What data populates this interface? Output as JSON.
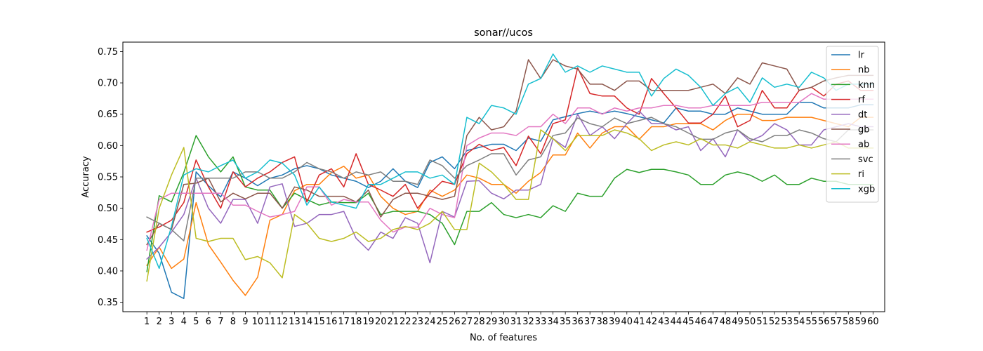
{
  "chart_data": {
    "type": "line",
    "title": "sonar//ucos",
    "xlabel": "No. of features",
    "ylabel": "Accuracy",
    "xlim": [
      -0.95,
      60.95
    ],
    "ylim": [
      0.335,
      0.765
    ],
    "yticks": [
      0.35,
      0.4,
      0.45,
      0.5,
      0.55,
      0.6,
      0.65,
      0.7,
      0.75
    ],
    "grid": false,
    "legend_position": "top-right",
    "x": [
      1,
      2,
      3,
      4,
      5,
      6,
      7,
      8,
      9,
      10,
      11,
      12,
      13,
      14,
      15,
      16,
      17,
      18,
      19,
      20,
      21,
      22,
      23,
      24,
      25,
      26,
      27,
      28,
      29,
      30,
      31,
      32,
      33,
      34,
      35,
      36,
      37,
      38,
      39,
      40,
      41,
      42,
      43,
      44,
      45,
      46,
      47,
      48,
      49,
      50,
      51,
      52,
      53,
      54,
      55,
      56,
      57,
      58,
      59,
      60
    ],
    "series": [
      {
        "name": "lr",
        "color": "#1f77b4",
        "values": [
          0.456,
          0.428,
          0.366,
          0.356,
          0.558,
          0.536,
          0.518,
          0.558,
          0.548,
          0.536,
          0.548,
          0.553,
          0.563,
          0.568,
          0.563,
          0.553,
          0.548,
          0.543,
          0.533,
          0.543,
          0.563,
          0.543,
          0.533,
          0.573,
          0.582,
          0.563,
          0.592,
          0.597,
          0.602,
          0.602,
          0.592,
          0.612,
          0.607,
          0.641,
          0.646,
          0.651,
          0.655,
          0.651,
          0.655,
          0.651,
          0.646,
          0.641,
          0.636,
          0.66,
          0.655,
          0.655,
          0.65,
          0.65,
          0.66,
          0.655,
          0.65,
          0.65,
          0.65,
          0.669,
          0.669,
          0.66,
          0.66,
          0.66,
          0.665,
          0.665
        ]
      },
      {
        "name": "nb",
        "color": "#ff7f0e",
        "values": [
          0.409,
          0.438,
          0.404,
          0.419,
          0.509,
          0.442,
          0.414,
          0.385,
          0.361,
          0.39,
          0.481,
          0.49,
          0.528,
          0.538,
          0.538,
          0.557,
          0.567,
          0.548,
          0.553,
          0.519,
          0.5,
          0.49,
          0.495,
          0.529,
          0.519,
          0.529,
          0.553,
          0.548,
          0.538,
          0.538,
          0.524,
          0.543,
          0.557,
          0.585,
          0.585,
          0.62,
          0.596,
          0.62,
          0.63,
          0.63,
          0.61,
          0.63,
          0.63,
          0.635,
          0.635,
          0.635,
          0.625,
          0.64,
          0.65,
          0.65,
          0.64,
          0.64,
          0.645,
          0.645,
          0.645,
          0.64,
          0.635,
          0.63,
          0.645,
          0.645
        ]
      },
      {
        "name": "knn",
        "color": "#2ca02c",
        "values": [
          0.399,
          0.52,
          0.51,
          0.557,
          0.616,
          0.582,
          0.558,
          0.582,
          0.534,
          0.529,
          0.529,
          0.5,
          0.524,
          0.514,
          0.505,
          0.51,
          0.509,
          0.509,
          0.524,
          0.49,
          0.495,
          0.495,
          0.495,
          0.49,
          0.476,
          0.442,
          0.495,
          0.495,
          0.509,
          0.49,
          0.485,
          0.49,
          0.485,
          0.504,
          0.495,
          0.524,
          0.519,
          0.519,
          0.548,
          0.562,
          0.557,
          0.562,
          0.562,
          0.558,
          0.553,
          0.538,
          0.538,
          0.553,
          0.558,
          0.553,
          0.543,
          0.553,
          0.538,
          0.538,
          0.548,
          0.543,
          0.543,
          0.538,
          0.538,
          0.538
        ]
      },
      {
        "name": "rf",
        "color": "#d62728",
        "values": [
          0.462,
          0.47,
          0.481,
          0.509,
          0.577,
          0.534,
          0.5,
          0.558,
          0.534,
          0.548,
          0.558,
          0.573,
          0.582,
          0.51,
          0.553,
          0.563,
          0.534,
          0.587,
          0.538,
          0.529,
          0.519,
          0.538,
          0.5,
          0.524,
          0.543,
          0.538,
          0.587,
          0.602,
          0.592,
          0.597,
          0.568,
          0.615,
          0.587,
          0.635,
          0.641,
          0.724,
          0.683,
          0.679,
          0.679,
          0.66,
          0.65,
          0.707,
          0.683,
          0.66,
          0.636,
          0.636,
          0.65,
          0.679,
          0.63,
          0.64,
          0.688,
          0.66,
          0.66,
          0.688,
          0.693,
          0.679,
          0.698,
          0.703,
          0.688,
          0.688
        ]
      },
      {
        "name": "dt",
        "color": "#9467bd",
        "values": [
          0.419,
          0.438,
          0.462,
          0.49,
          0.548,
          0.5,
          0.476,
          0.514,
          0.514,
          0.476,
          0.534,
          0.539,
          0.471,
          0.476,
          0.49,
          0.49,
          0.495,
          0.452,
          0.433,
          0.462,
          0.452,
          0.485,
          0.476,
          0.413,
          0.495,
          0.486,
          0.543,
          0.544,
          0.524,
          0.515,
          0.529,
          0.529,
          0.538,
          0.611,
          0.597,
          0.65,
          0.616,
          0.63,
          0.611,
          0.635,
          0.655,
          0.635,
          0.635,
          0.625,
          0.63,
          0.592,
          0.611,
          0.582,
          0.625,
          0.607,
          0.616,
          0.635,
          0.625,
          0.601,
          0.601,
          0.625,
          0.63,
          0.635,
          0.63,
          0.63
        ]
      },
      {
        "name": "gb",
        "color": "#8c564b",
        "values": [
          0.442,
          0.476,
          0.466,
          0.538,
          0.54,
          0.548,
          0.51,
          0.524,
          0.515,
          0.524,
          0.524,
          0.5,
          0.534,
          0.529,
          0.519,
          0.519,
          0.519,
          0.51,
          0.529,
          0.486,
          0.514,
          0.524,
          0.524,
          0.519,
          0.514,
          0.519,
          0.616,
          0.645,
          0.625,
          0.63,
          0.655,
          0.737,
          0.707,
          0.737,
          0.727,
          0.722,
          0.698,
          0.698,
          0.688,
          0.703,
          0.703,
          0.688,
          0.688,
          0.688,
          0.688,
          0.693,
          0.698,
          0.683,
          0.708,
          0.698,
          0.732,
          0.727,
          0.722,
          0.688,
          0.693,
          0.703,
          0.708,
          0.712,
          0.712,
          0.712
        ]
      },
      {
        "name": "ab",
        "color": "#e377c2",
        "values": [
          0.433,
          0.514,
          0.524,
          0.524,
          0.524,
          0.524,
          0.524,
          0.505,
          0.505,
          0.495,
          0.486,
          0.49,
          0.495,
          0.534,
          0.534,
          0.505,
          0.514,
          0.51,
          0.51,
          0.481,
          0.462,
          0.47,
          0.47,
          0.5,
          0.49,
          0.485,
          0.6,
          0.612,
          0.62,
          0.62,
          0.616,
          0.63,
          0.63,
          0.65,
          0.635,
          0.66,
          0.66,
          0.65,
          0.66,
          0.655,
          0.66,
          0.66,
          0.664,
          0.664,
          0.66,
          0.66,
          0.664,
          0.664,
          0.664,
          0.664,
          0.669,
          0.669,
          0.669,
          0.669,
          0.683,
          0.674,
          0.674,
          0.674,
          0.674,
          0.674
        ]
      },
      {
        "name": "svc",
        "color": "#7f7f7f",
        "values": [
          0.486,
          0.476,
          0.466,
          0.448,
          0.548,
          0.548,
          0.548,
          0.548,
          0.558,
          0.558,
          0.548,
          0.548,
          0.558,
          0.573,
          0.563,
          0.558,
          0.548,
          0.558,
          0.553,
          0.558,
          0.543,
          0.543,
          0.538,
          0.577,
          0.568,
          0.548,
          0.568,
          0.577,
          0.587,
          0.587,
          0.553,
          0.577,
          0.582,
          0.616,
          0.62,
          0.644,
          0.635,
          0.63,
          0.644,
          0.635,
          0.64,
          0.645,
          0.635,
          0.63,
          0.62,
          0.61,
          0.61,
          0.62,
          0.625,
          0.611,
          0.606,
          0.616,
          0.616,
          0.625,
          0.62,
          0.611,
          0.606,
          0.625,
          0.625,
          0.625
        ]
      },
      {
        "name": "ri",
        "color": "#bcbd22",
        "values": [
          0.384,
          0.5,
          0.553,
          0.597,
          0.452,
          0.447,
          0.452,
          0.452,
          0.418,
          0.423,
          0.413,
          0.389,
          0.49,
          0.476,
          0.452,
          0.447,
          0.452,
          0.462,
          0.447,
          0.452,
          0.466,
          0.471,
          0.466,
          0.476,
          0.495,
          0.466,
          0.466,
          0.572,
          0.558,
          0.538,
          0.514,
          0.514,
          0.625,
          0.611,
          0.592,
          0.616,
          0.616,
          0.616,
          0.625,
          0.62,
          0.611,
          0.592,
          0.601,
          0.606,
          0.601,
          0.611,
          0.601,
          0.601,
          0.596,
          0.606,
          0.601,
          0.596,
          0.596,
          0.601,
          0.596,
          0.601,
          0.606,
          0.596,
          0.596,
          0.596
        ]
      },
      {
        "name": "xgb",
        "color": "#17becf",
        "values": [
          0.452,
          0.404,
          0.471,
          0.553,
          0.563,
          0.558,
          0.568,
          0.577,
          0.548,
          0.558,
          0.577,
          0.572,
          0.553,
          0.505,
          0.534,
          0.51,
          0.505,
          0.5,
          0.538,
          0.538,
          0.548,
          0.558,
          0.558,
          0.548,
          0.553,
          0.538,
          0.645,
          0.635,
          0.664,
          0.66,
          0.65,
          0.698,
          0.707,
          0.746,
          0.717,
          0.727,
          0.717,
          0.727,
          0.722,
          0.717,
          0.717,
          0.679,
          0.707,
          0.722,
          0.712,
          0.693,
          0.664,
          0.683,
          0.693,
          0.669,
          0.708,
          0.693,
          0.698,
          0.693,
          0.717,
          0.708,
          0.688,
          0.698,
          0.698,
          0.698
        ]
      }
    ]
  }
}
